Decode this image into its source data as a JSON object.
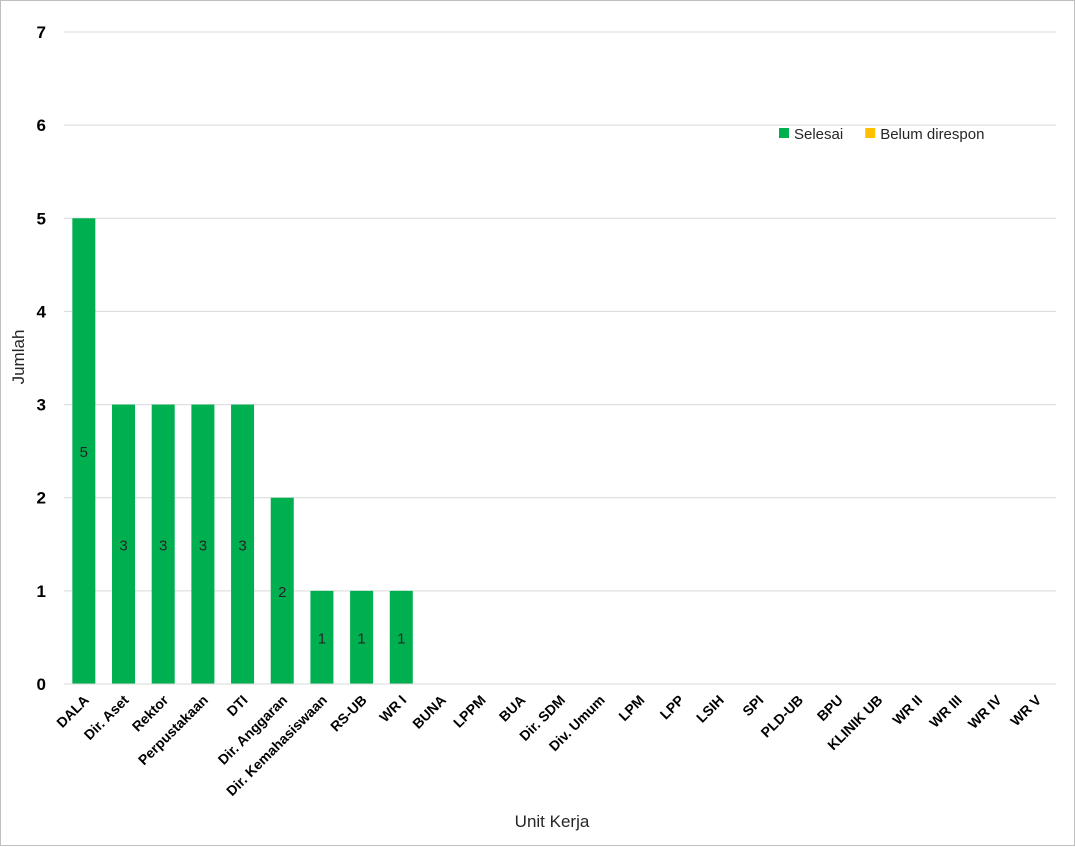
{
  "chart_data": {
    "type": "bar",
    "categories": [
      "DALA",
      "Dir. Aset",
      "Rektor",
      "Perpustakaan",
      "DTI",
      "Dir. Anggaran",
      "Dir. Kemahasiswaan",
      "RS-UB",
      "WR I",
      "BUNA",
      "LPPM",
      "BUA",
      "Dir. SDM",
      "Div. Umum",
      "LPM",
      "LPP",
      "LSIH",
      "SPI",
      "PLD-UB",
      "BPU",
      "KLINIK UB",
      "WR II",
      "WR III",
      "WR IV",
      "WR V"
    ],
    "series": [
      {
        "name": "Selesai",
        "color": "#00b050",
        "values": [
          5,
          3,
          3,
          3,
          3,
          2,
          1,
          1,
          1,
          0,
          0,
          0,
          0,
          0,
          0,
          0,
          0,
          0,
          0,
          0,
          0,
          0,
          0,
          0,
          0
        ],
        "labels": [
          "5",
          "3",
          "3",
          "3",
          "3",
          "2",
          "1",
          "1",
          "1",
          "",
          "",
          "",
          "",
          "",
          "",
          "",
          "",
          "",
          "",
          "",
          "",
          "",
          "",
          "",
          ""
        ]
      },
      {
        "name": "Belum direspon",
        "color": "#ffc000",
        "values": [
          0,
          0,
          0,
          0,
          0,
          0,
          0,
          0,
          0,
          0,
          0,
          0,
          0,
          0,
          0,
          0,
          0,
          0,
          0,
          0,
          0,
          0,
          0,
          0,
          0
        ]
      }
    ],
    "stacked": true,
    "xlabel": "Unit Kerja",
    "ylabel": "Jumlah",
    "ylim": [
      0,
      7
    ],
    "yticks": [
      "0",
      "1",
      "2",
      "3",
      "4",
      "5",
      "6",
      "7"
    ],
    "grid": true,
    "legend_position": "top-right"
  }
}
